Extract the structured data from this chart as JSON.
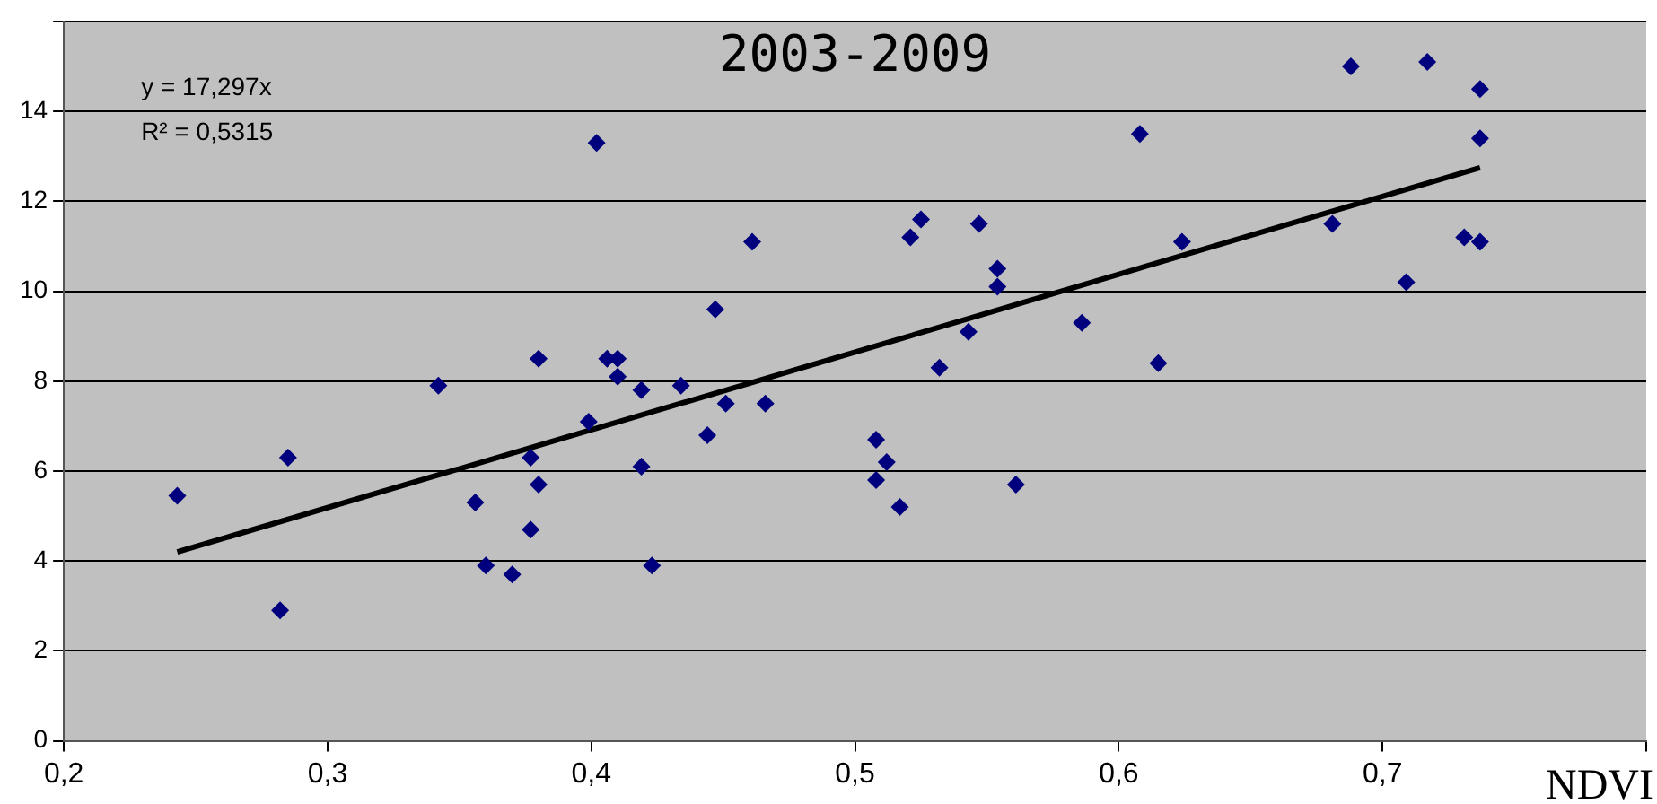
{
  "chart_data": {
    "type": "scatter",
    "title": "2003-2009",
    "xlabel": "NDVI",
    "annotations": [
      "y = 17,297x",
      "R² = 0,5315"
    ],
    "xlim": [
      0.2,
      0.8
    ],
    "xticks": [
      {
        "value": 0.2,
        "label": "0,2"
      },
      {
        "value": 0.3,
        "label": "0,3"
      },
      {
        "value": 0.4,
        "label": "0,4"
      },
      {
        "value": 0.5,
        "label": "0,5"
      },
      {
        "value": 0.6,
        "label": "0,6"
      },
      {
        "value": 0.7,
        "label": "0,7"
      },
      {
        "value": 0.8,
        "label": null
      }
    ],
    "ylim": [
      0,
      16
    ],
    "yticks": [
      0,
      2,
      4,
      6,
      8,
      10,
      12,
      14,
      {
        "value": 16,
        "label": null
      }
    ],
    "grid": "y",
    "legend": false,
    "marker": "diamond",
    "series": [
      {
        "type": "scatter",
        "color": "#00007f",
        "x": [
          0.243,
          0.282,
          0.285,
          0.342,
          0.356,
          0.36,
          0.37,
          0.377,
          0.377,
          0.38,
          0.38,
          0.399,
          0.402,
          0.406,
          0.41,
          0.41,
          0.419,
          0.419,
          0.423,
          0.434,
          0.444,
          0.447,
          0.451,
          0.461,
          0.466,
          0.508,
          0.508,
          0.512,
          0.517,
          0.521,
          0.525,
          0.532,
          0.543,
          0.547,
          0.554,
          0.554,
          0.561,
          0.586,
          0.608,
          0.615,
          0.624,
          0.681,
          0.688,
          0.709,
          0.717,
          0.731,
          0.737,
          0.737,
          0.737
        ],
        "values": [
          5.45,
          2.9,
          6.3,
          7.9,
          5.3,
          3.9,
          3.7,
          6.3,
          4.7,
          5.7,
          8.5,
          7.1,
          13.3,
          8.5,
          8.5,
          8.1,
          7.8,
          6.1,
          3.9,
          7.9,
          6.8,
          9.6,
          7.5,
          11.1,
          7.5,
          6.7,
          5.8,
          6.2,
          5.2,
          11.2,
          11.6,
          8.3,
          9.1,
          11.5,
          10.5,
          10.1,
          5.7,
          9.3,
          13.5,
          8.4,
          11.1,
          11.5,
          15.0,
          10.2,
          15.1,
          11.2,
          14.5,
          13.4,
          11.1
        ]
      },
      {
        "type": "line",
        "color": "#000000",
        "marker": "none",
        "x": [
          0.243,
          0.737
        ],
        "values": [
          4.2,
          12.75
        ]
      }
    ]
  }
}
